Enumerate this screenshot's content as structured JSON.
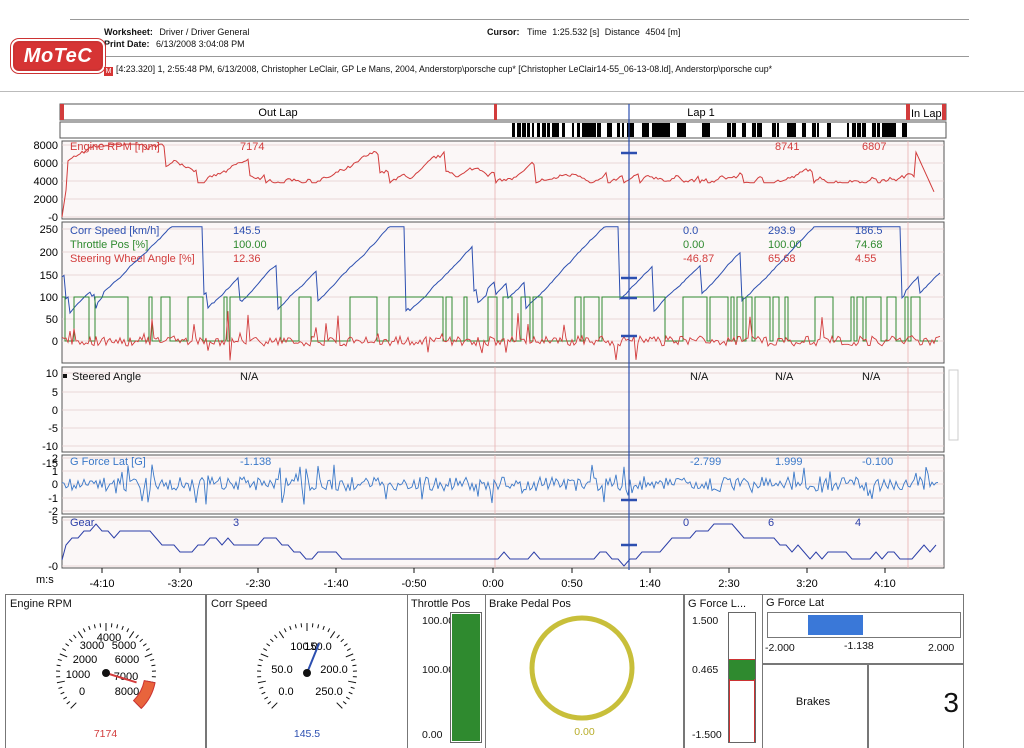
{
  "header": {
    "worksheet_label": "Worksheet:",
    "worksheet_value": "Driver / Driver General",
    "print_date_label": "Print Date:",
    "print_date_value": "6/13/2008 3:04:08 PM",
    "cursor_label": "Cursor:",
    "cursor_time_label": "Time",
    "cursor_time_value": "1:25.532 [s]",
    "cursor_distance_label": "Distance",
    "cursor_distance_value": "4504 [m]",
    "logo_text": "MoTeC",
    "source_icon": "M",
    "source_line": "[4:23.320] 1, 2:55:48 PM, 6/13/2008, Christopher LeClair, GP Le Mans, 2004, Anderstorp\\porsche cup* [Christopher LeClair14-55_06-13-08.ld], Anderstorp\\porsche cup*"
  },
  "laps": {
    "out_lap": "Out Lap",
    "lap1": "Lap 1",
    "in_lap": "In Lap"
  },
  "colors": {
    "rpm": "#d23c3c",
    "speed": "#2c4fb0",
    "throttle": "#2f8a2f",
    "steer": "#d23c3c",
    "glat": "#3a78c8",
    "gear": "#2c3fa8",
    "cursor": "#2c4fb0",
    "gauge_yellow": "#c8bf3a"
  },
  "chart_data": [
    {
      "type": "line",
      "name": "rpm-panel",
      "series": [
        {
          "name": "Engine RPM [rpm]",
          "cursor_values": [
            "7174",
            "",
            "8741",
            "6807"
          ]
        }
      ],
      "yticks": [
        "8000",
        "6000",
        "4000",
        "2000",
        "-0"
      ],
      "ylim": [
        0,
        8500
      ]
    },
    {
      "type": "line",
      "name": "speed-panel",
      "series": [
        {
          "name": "Corr Speed [km/h]",
          "cursor_values": [
            "145.5",
            "0.0",
            "293.9",
            "186.5"
          ]
        },
        {
          "name": "Throttle Pos [%]",
          "cursor_values": [
            "100.00",
            "0.00",
            "100.00",
            "74.68"
          ]
        },
        {
          "name": "Steering Wheel Angle [%]",
          "cursor_values": [
            "12.36",
            "-46.87",
            "65.68",
            "4.55"
          ]
        }
      ],
      "yticks": [
        "250",
        "200",
        "150",
        "100",
        "50",
        "0"
      ],
      "ylim": [
        -10,
        260
      ]
    },
    {
      "type": "line",
      "name": "steer-angle-panel",
      "series": [
        {
          "name": "Steered Angle",
          "cursor_values": [
            "N/A",
            "N/A",
            "N/A",
            "N/A"
          ]
        }
      ],
      "yticks": [
        "10",
        "5",
        "0",
        "-5",
        "-10",
        "-15"
      ],
      "ylim": [
        -17,
        11
      ]
    },
    {
      "type": "line",
      "name": "glat-panel",
      "series": [
        {
          "name": "G Force Lat [G]",
          "cursor_values": [
            "-1.138",
            "-2.799",
            "1.999",
            "-0.100"
          ]
        }
      ],
      "yticks": [
        "2",
        "1",
        "0",
        "-1",
        "-2"
      ],
      "ylim": [
        -2.3,
        2.3
      ]
    },
    {
      "type": "line",
      "name": "gear-panel",
      "series": [
        {
          "name": "Gear",
          "cursor_values": [
            "3",
            "0",
            "6",
            "4"
          ]
        }
      ],
      "yticks": [
        "5",
        "-0"
      ],
      "ylim": [
        -0.5,
        6.5
      ]
    }
  ],
  "xaxis": {
    "unit_label": "m:s",
    "ticks": [
      "-4:10",
      "-3:20",
      "-2:30",
      "-1:40",
      "-0:50",
      "0:00",
      "0:50",
      "1:40",
      "2:30",
      "3:20",
      "4:10"
    ]
  },
  "gauges": {
    "rpm": {
      "title": "Engine RPM",
      "value": "7174",
      "labels": [
        "0",
        "1000",
        "2000",
        "3000",
        "4000",
        "5000",
        "6000",
        "7000",
        "8000"
      ],
      "fraction": 0.897
    },
    "speed": {
      "title": "Corr Speed",
      "value": "145.5",
      "labels": [
        "0.0",
        "50.0",
        "100.0",
        "150.0",
        "200.0",
        "250.0"
      ],
      "fraction": 0.582
    },
    "throttle": {
      "title": "Throttle Pos",
      "top": "100.00",
      "mid": "100.00",
      "bottom": "0.00",
      "fraction": 1.0
    },
    "brake": {
      "title": "Brake Pedal Pos",
      "value": "0.00"
    },
    "glat_vertical": {
      "title": "G Force L...",
      "top": "1.500",
      "mid": "0.465",
      "bottom": "-1.500"
    },
    "glat_horizontal": {
      "title": "G Force Lat",
      "min": "-2.000",
      "value": "-1.138",
      "max": "2.000"
    },
    "brakes_label": "Brakes",
    "gear_display": "3"
  }
}
